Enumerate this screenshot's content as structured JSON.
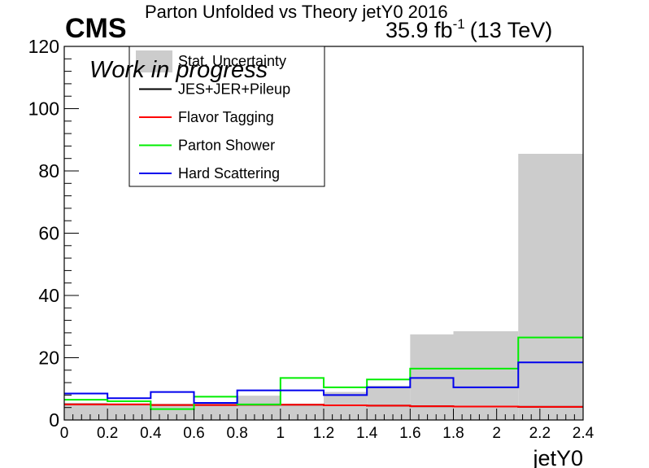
{
  "header": {
    "cms": "CMS",
    "title": "Parton Unfolded vs Theory jetY0 2016",
    "lumi": "35.9 fb",
    "lumi_sup": "-1",
    "energy": "(13 TeV)",
    "status": "Work in progress"
  },
  "chart_data": {
    "type": "histogram",
    "xlabel": "jetY0",
    "ylabel": "",
    "xlim": [
      0,
      2.4
    ],
    "ylim": [
      0,
      120
    ],
    "x_ticks": [
      0,
      0.2,
      0.4,
      0.6,
      0.8,
      1,
      1.2,
      1.4,
      1.6,
      1.8,
      2,
      2.2,
      2.4
    ],
    "x_tick_labels": [
      "0",
      "0.2",
      "0.4",
      "0.6",
      "0.8",
      "1",
      "1.2",
      "1.4",
      "1.6",
      "1.8",
      "2",
      "2.2",
      "2.4"
    ],
    "y_ticks": [
      0,
      20,
      40,
      60,
      80,
      100,
      120
    ],
    "y_tick_labels": [
      "0",
      "20",
      "40",
      "60",
      "80",
      "100",
      "120"
    ],
    "bin_edges": [
      0,
      0.2,
      0.4,
      0.6,
      0.8,
      1.0,
      1.2,
      1.4,
      1.6,
      1.8,
      2.1,
      2.4
    ],
    "grid": false,
    "legend_position": "top-left",
    "series": [
      {
        "name": "Stat. Uncertainty",
        "style": "fill",
        "color": "#cccccc",
        "values": [
          5.5,
          5.0,
          5.2,
          5.4,
          7.8,
          5.0,
          9.0,
          11.0,
          27.5,
          28.5,
          85.5
        ]
      },
      {
        "name": "JES+JER+Pileup",
        "style": "line",
        "color": "#000000",
        "values": [
          5.0,
          5.0,
          4.8,
          4.8,
          4.9,
          4.9,
          4.7,
          4.6,
          4.4,
          4.3,
          4.2
        ]
      },
      {
        "name": "Flavor Tagging",
        "style": "line",
        "color": "#ff0000",
        "values": [
          5.0,
          5.0,
          4.8,
          4.8,
          4.9,
          4.9,
          4.7,
          4.6,
          4.4,
          4.3,
          4.2
        ]
      },
      {
        "name": "Parton Shower",
        "style": "line",
        "color": "#00ee00",
        "values": [
          6.5,
          6.0,
          3.5,
          7.5,
          5.0,
          13.5,
          10.5,
          13.0,
          16.5,
          16.5,
          26.5
        ]
      },
      {
        "name": "Hard Scattering",
        "style": "line",
        "color": "#0000ee",
        "values": [
          8.5,
          7.0,
          9.0,
          5.5,
          9.5,
          9.5,
          8.0,
          10.5,
          13.5,
          10.5,
          18.5
        ]
      }
    ]
  }
}
